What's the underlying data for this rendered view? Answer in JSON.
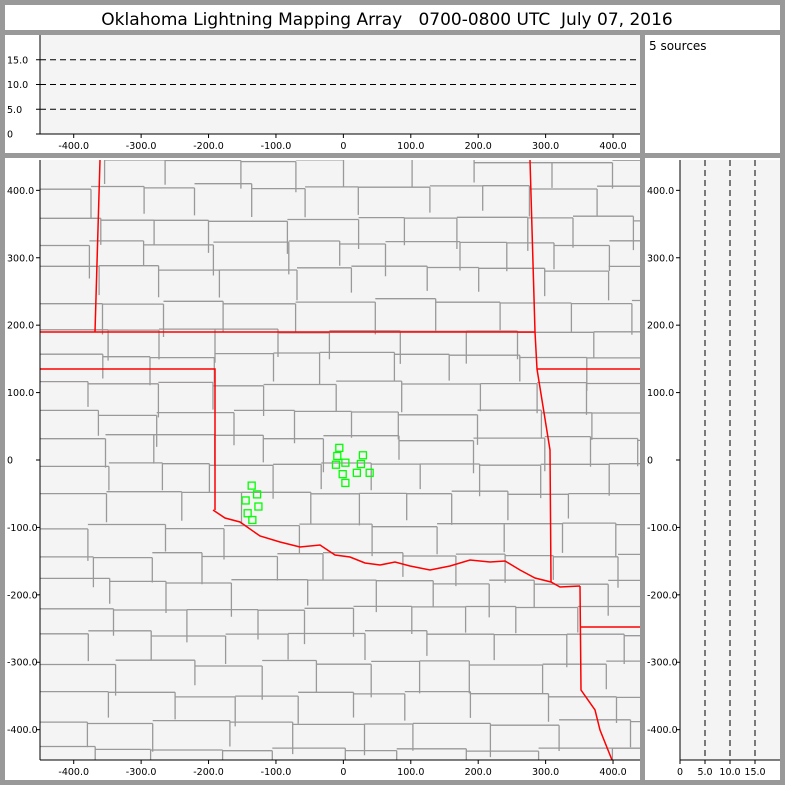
{
  "title": "Oklahoma Lightning Mapping Array   0700-0800 UTC  July 07, 2016",
  "source_count_label": "5 sources",
  "colors": {
    "frame": "#999999",
    "plot_bg": "#f4f4f4",
    "state_border": "#ff0000",
    "county_border": "#999999",
    "source": "#00ff00"
  },
  "chart_data": [
    {
      "name": "altitude-vs-east-west",
      "type": "scatter",
      "xlim": [
        -450,
        440
      ],
      "ylim": [
        0,
        20
      ],
      "xticks": [
        -400,
        -300,
        -200,
        -100,
        0,
        100,
        200,
        300,
        400
      ],
      "xtick_labels": [
        "-400.0",
        "-300.0",
        "-200.0",
        "-100.0",
        "0",
        "100.0",
        "200.0",
        "300.0",
        "400.0"
      ],
      "yticks": [
        0,
        5,
        10,
        15
      ],
      "ytick_labels": [
        "0",
        "5.0",
        "10.0",
        "15.0"
      ],
      "dashed_lines_y": [
        5,
        10,
        15
      ]
    },
    {
      "name": "plan-view-map",
      "type": "scatter",
      "xlim": [
        -450,
        440
      ],
      "ylim": [
        -445,
        445
      ],
      "xticks": [
        -400,
        -300,
        -200,
        -100,
        0,
        100,
        200,
        300,
        400
      ],
      "xtick_labels": [
        "-400.0",
        "-300.0",
        "-200.0",
        "-100.0",
        "0",
        "100.0",
        "200.0",
        "300.0",
        "400.0"
      ],
      "yticks": [
        -400,
        -300,
        -200,
        -100,
        0,
        100,
        200,
        300,
        400
      ],
      "ytick_labels": [
        "-400.0",
        "-300.0",
        "-200.0",
        "-100.0",
        "0",
        "100.0",
        "200.0",
        "300.0",
        "400.0"
      ],
      "points": [
        [
          -6,
          18
        ],
        [
          -9,
          6
        ],
        [
          29,
          7
        ],
        [
          -11,
          -7
        ],
        [
          3,
          -4
        ],
        [
          26,
          -6
        ],
        [
          -1,
          -21
        ],
        [
          20,
          -19
        ],
        [
          39,
          -19
        ],
        [
          3,
          -34
        ],
        [
          -136,
          -38
        ],
        [
          -128,
          -51
        ],
        [
          -145,
          -60
        ],
        [
          -126,
          -69
        ],
        [
          -142,
          -79
        ],
        [
          -135,
          -89
        ]
      ],
      "marker": "hollow-square"
    },
    {
      "name": "north-south-vs-altitude",
      "type": "scatter",
      "xlim": [
        0,
        20
      ],
      "ylim": [
        -445,
        445
      ],
      "xticks": [
        0,
        5,
        10,
        15
      ],
      "xtick_labels": [
        "0",
        "5.0",
        "10.0",
        "15.0"
      ],
      "yticks": [
        -400,
        -300,
        -200,
        -100,
        0,
        100,
        200,
        300,
        400
      ],
      "ytick_labels": [
        "-400.0",
        "-300.0",
        "-200.0",
        "-100.0",
        "0",
        "100.0",
        "200.0",
        "300.0",
        "400.0"
      ],
      "dashed_lines_x": [
        5,
        10,
        15
      ]
    }
  ]
}
